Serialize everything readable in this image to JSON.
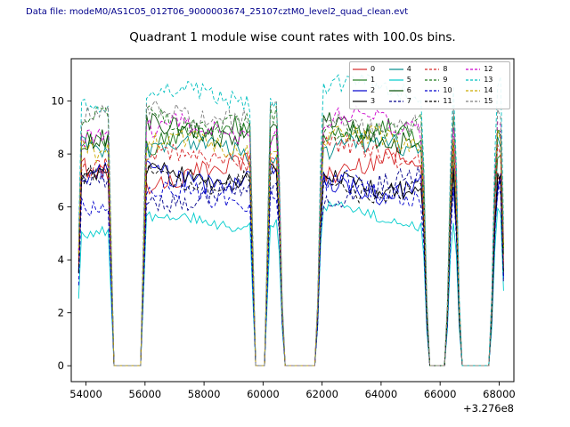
{
  "header": {
    "text": "Data file: modeM0/AS1C05_012T06_9000003674_25107cztM0_level2_quad_clean.evt",
    "color": "#00008b"
  },
  "chart_data": {
    "type": "line",
    "title": "Quadrant 1 module wise count rates with 100.0s bins.",
    "xlabel": "",
    "ylabel": "",
    "x_offset_label": "+3.276e8",
    "xlim": [
      53500,
      68500
    ],
    "ylim": [
      -0.6,
      11.6
    ],
    "xticks": [
      54000,
      56000,
      58000,
      60000,
      62000,
      64000,
      66000,
      68000
    ],
    "yticks": [
      0,
      2,
      4,
      6,
      8,
      10
    ],
    "grid": false,
    "legend_position": "upper right",
    "bin_seconds": 100,
    "x_start": 53750,
    "x_end": 68150,
    "on_intervals": [
      [
        53750,
        54850
      ],
      [
        55950,
        59650
      ],
      [
        60150,
        60600
      ],
      [
        61900,
        65500
      ],
      [
        66300,
        66600
      ],
      [
        67800,
        68150
      ]
    ],
    "gap_value": 0,
    "legend_columns": [
      [
        "0",
        "1",
        "2",
        "3"
      ],
      [
        "4",
        "5",
        "6",
        "7"
      ],
      [
        "8",
        "9",
        "10",
        "11"
      ],
      [
        "12",
        "13",
        "14",
        "15"
      ]
    ],
    "series": [
      {
        "name": "0",
        "color": "#d62728",
        "dash": "solid",
        "mean": 7.4,
        "noise": 0.4
      },
      {
        "name": "1",
        "color": "#1f7a1f",
        "dash": "solid",
        "mean": 8.6,
        "noise": 0.4
      },
      {
        "name": "2",
        "color": "#0000cd",
        "dash": "solid",
        "mean": 7.0,
        "noise": 0.4
      },
      {
        "name": "3",
        "color": "#000000",
        "dash": "solid",
        "mean": 7.1,
        "noise": 0.35
      },
      {
        "name": "4",
        "color": "#008b8b",
        "dash": "solid",
        "mean": 8.2,
        "noise": 0.4
      },
      {
        "name": "5",
        "color": "#00cccc",
        "dash": "solid",
        "mean": 5.5,
        "noise": 0.2
      },
      {
        "name": "6",
        "color": "#004d00",
        "dash": "solid",
        "mean": 8.8,
        "noise": 0.4
      },
      {
        "name": "7",
        "color": "#00008b",
        "dash": "dashed",
        "mean": 6.7,
        "noise": 0.4
      },
      {
        "name": "8",
        "color": "#d62728",
        "dash": "dashed",
        "mean": 7.9,
        "noise": 0.4
      },
      {
        "name": "9",
        "color": "#1f7a1f",
        "dash": "dashed",
        "mean": 9.2,
        "noise": 0.4
      },
      {
        "name": "10",
        "color": "#0000cd",
        "dash": "dashed",
        "mean": 6.5,
        "noise": 0.4
      },
      {
        "name": "11",
        "color": "#000000",
        "dash": "dashed",
        "mean": 7.0,
        "noise": 0.35
      },
      {
        "name": "12",
        "color": "#cc00cc",
        "dash": "dashed",
        "mean": 9.0,
        "noise": 0.4
      },
      {
        "name": "13",
        "color": "#00bfbf",
        "dash": "dashed",
        "mean": 10.3,
        "noise": 0.35
      },
      {
        "name": "14",
        "color": "#ccaa00",
        "dash": "dashed",
        "mean": 8.4,
        "noise": 0.4
      },
      {
        "name": "15",
        "color": "#7f7f7f",
        "dash": "dashed",
        "mean": 9.4,
        "noise": 0.4
      }
    ]
  }
}
